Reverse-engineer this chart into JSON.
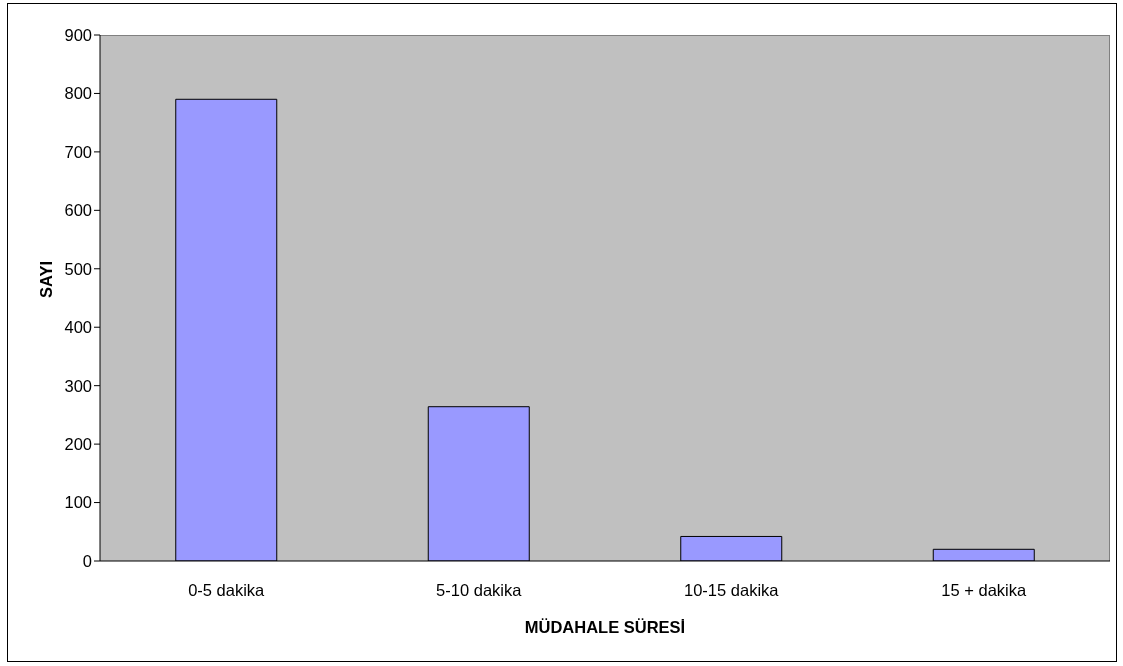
{
  "chart_data": {
    "type": "bar",
    "xlabel": "MÜDAHALE SÜRESİ",
    "ylabel": "SAYI",
    "categories": [
      "0-5 dakika",
      "5-10 dakika",
      "10-15 dakika",
      "15 + dakika"
    ],
    "values": [
      790,
      264,
      42,
      20
    ],
    "color": "#9999ff",
    "ylim": [
      0,
      900
    ],
    "yticks": [
      0,
      100,
      200,
      300,
      400,
      500,
      600,
      700,
      800,
      900
    ]
  }
}
